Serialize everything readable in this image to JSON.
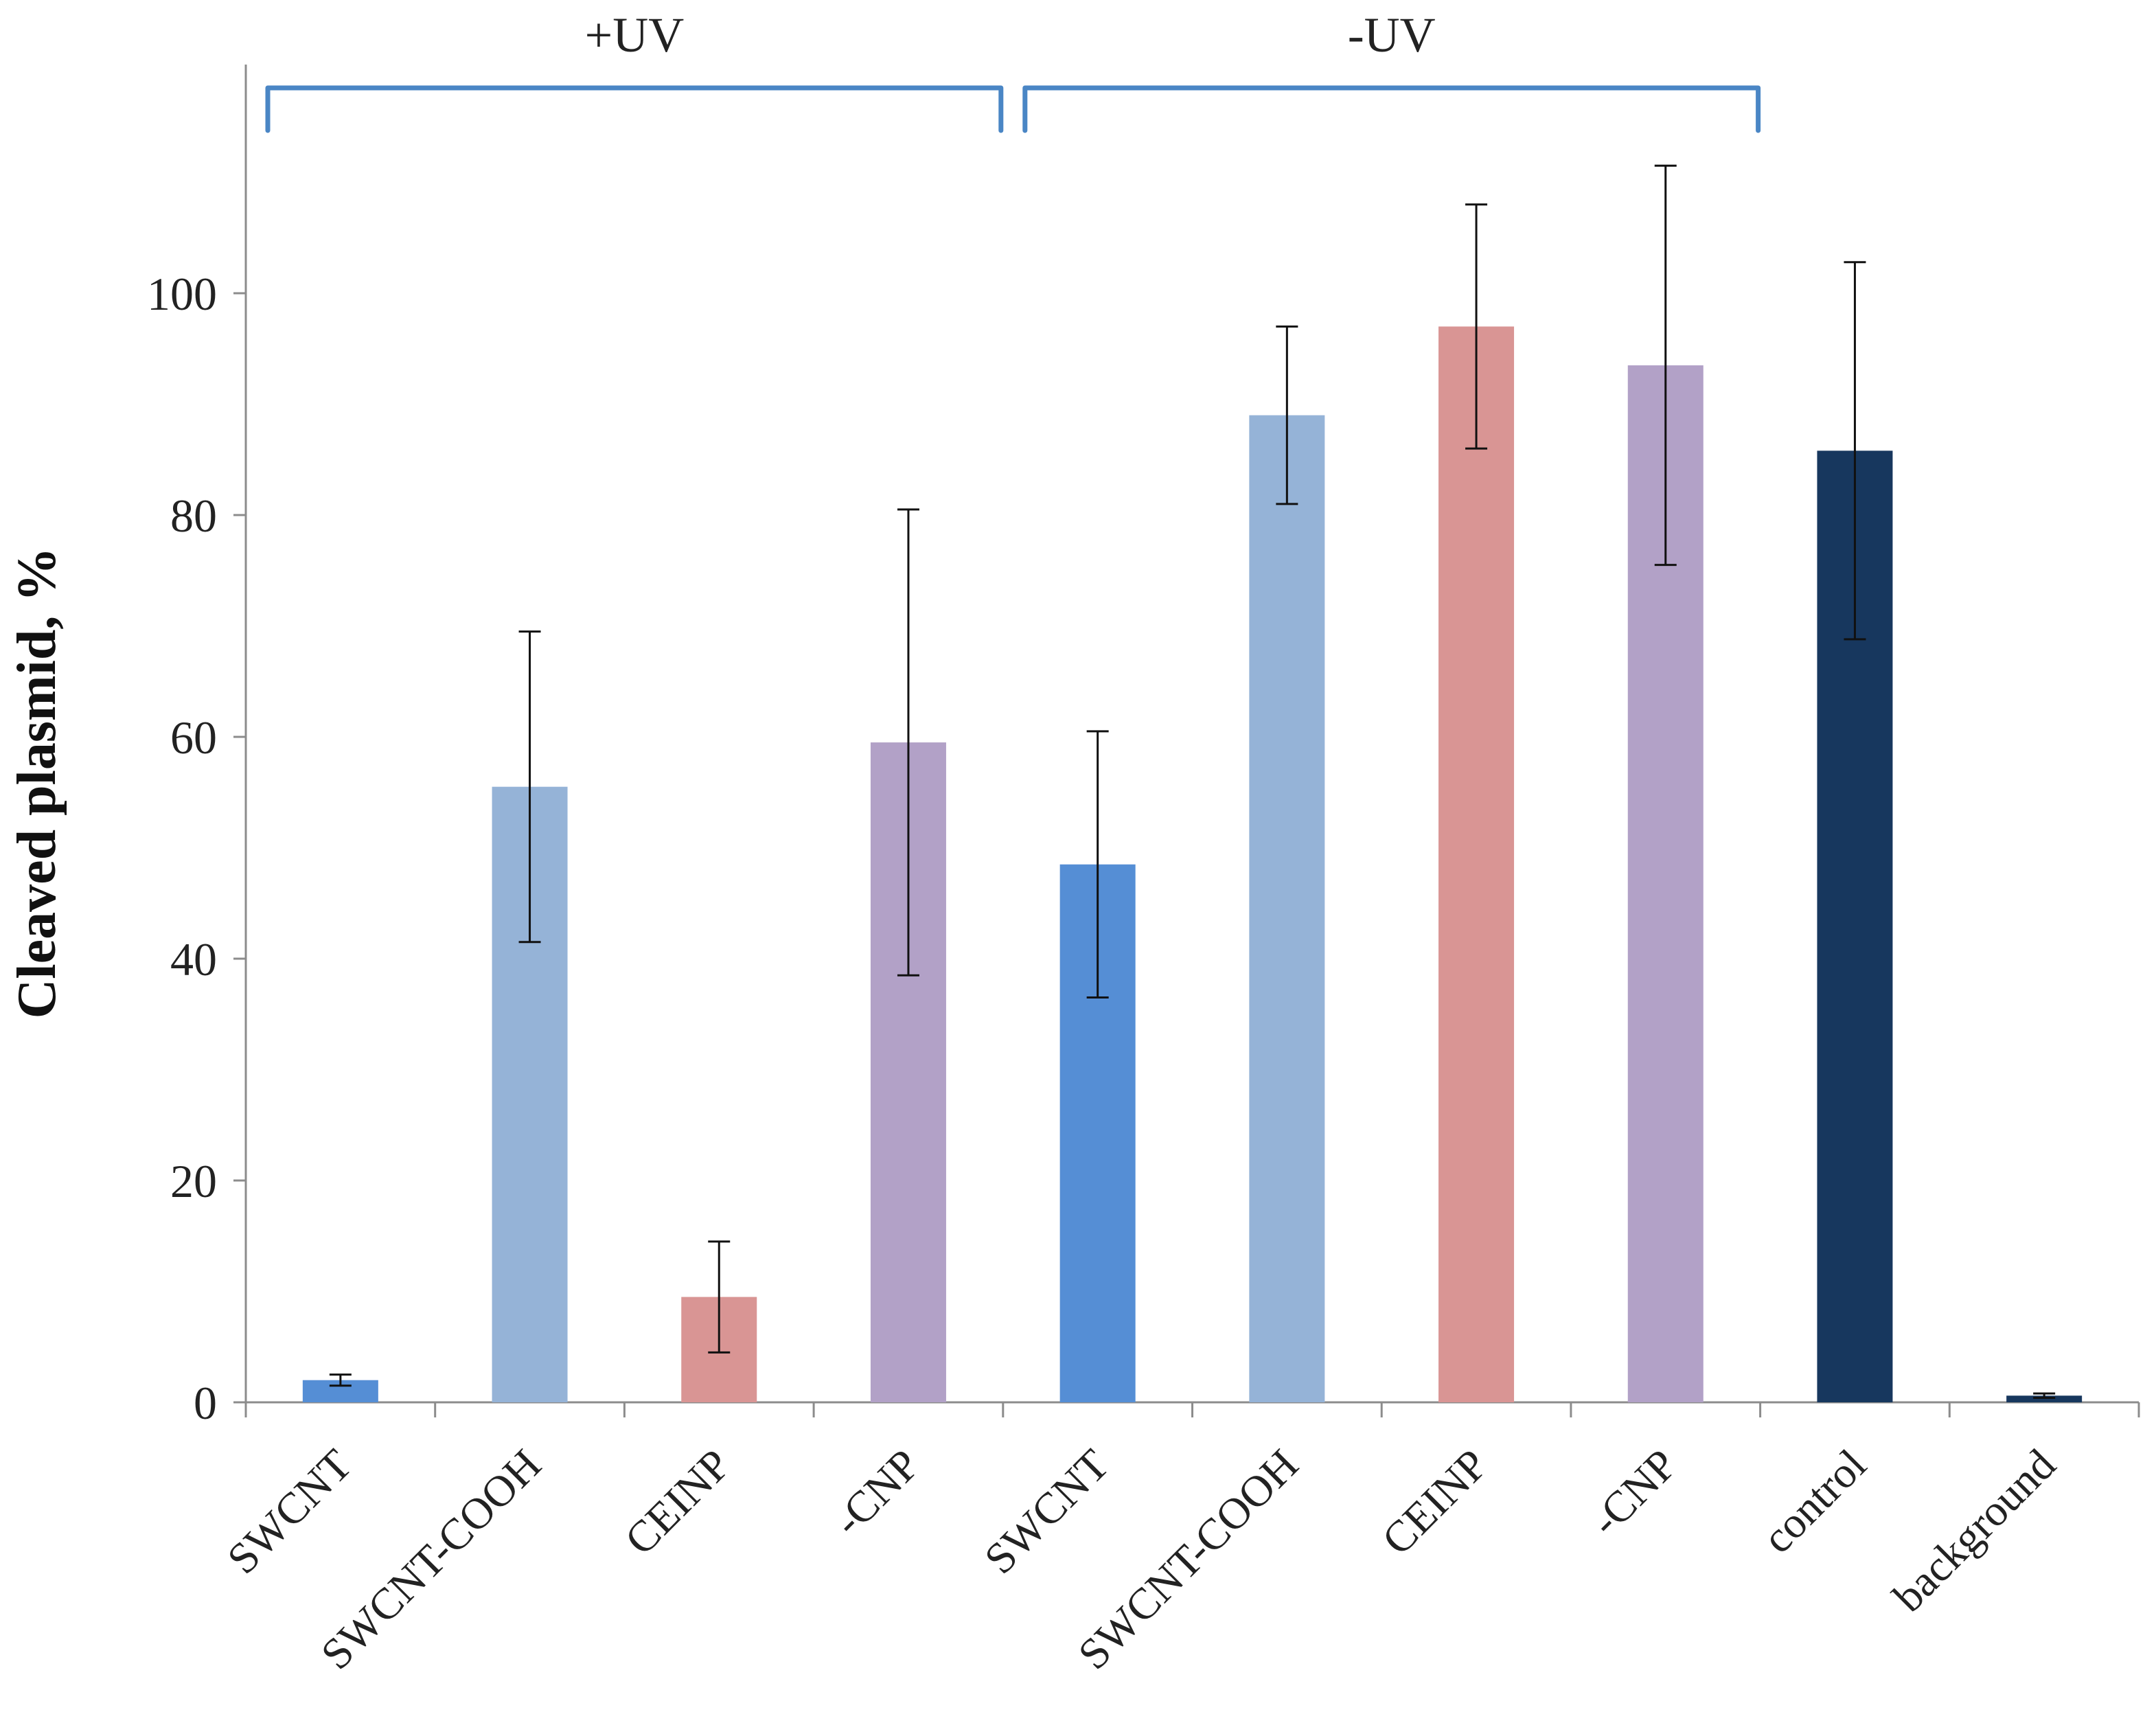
{
  "chart_data": {
    "type": "bar",
    "title": "",
    "xlabel": "",
    "ylabel": "Cleaved plasmid, %",
    "ylim": [
      0,
      120
    ],
    "yticks": [
      0,
      20,
      40,
      60,
      80,
      100
    ],
    "grid": false,
    "legend": "none",
    "categories": [
      "SWCNT",
      "SWCNT-COOH",
      "CEINP",
      "-CNP",
      "SWCNT",
      "SWCNT-COOH",
      "CEINP",
      "-CNP",
      "control",
      "background"
    ],
    "values": [
      2.0,
      55.5,
      9.5,
      59.5,
      48.5,
      89.0,
      97.0,
      93.5,
      85.8,
      0.6
    ],
    "errors": [
      0.5,
      14.0,
      5.0,
      21.0,
      12.0,
      8.0,
      11.0,
      18.0,
      17.0,
      0.2
    ],
    "colors": [
      "#558ed5",
      "#95b3d7",
      "#d99594",
      "#b2a1c7",
      "#558ed5",
      "#95b3d7",
      "#d99594",
      "#b2a1c7",
      "#17375e",
      "#17375e"
    ],
    "groups": [
      {
        "label": "+UV",
        "start": 0,
        "end": 3
      },
      {
        "label": "-UV",
        "start": 4,
        "end": 7
      }
    ],
    "bracket_color": "#4a86c5"
  }
}
